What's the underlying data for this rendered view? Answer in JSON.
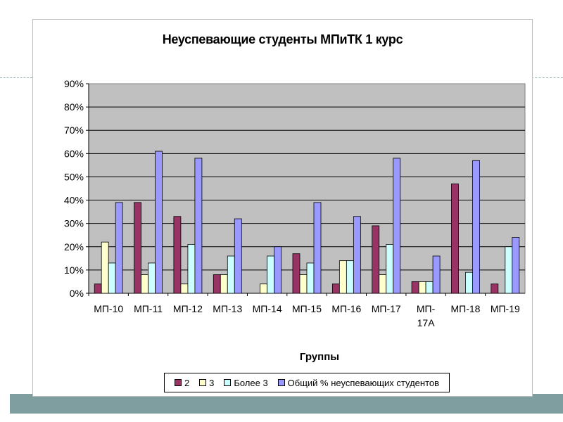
{
  "chart_data": {
    "type": "bar",
    "title": "Неуспевающие студенты МПиТК 1 курс",
    "xlabel": "Группы",
    "ylabel": "",
    "ylim": [
      0,
      90
    ],
    "yticks": [
      "0%",
      "10%",
      "20%",
      "30%",
      "40%",
      "50%",
      "60%",
      "70%",
      "80%",
      "90%"
    ],
    "grid": true,
    "legend_position": "bottom",
    "categories": [
      "МП-10",
      "МП-11",
      "МП-12",
      "МП-13",
      "МП-14",
      "МП-15",
      "МП-16",
      "МП-17",
      "МП-17А",
      "МП-18",
      "МП-19"
    ],
    "category_labels": [
      [
        "МП-10"
      ],
      [
        "МП-11"
      ],
      [
        "МП-12"
      ],
      [
        "МП-13"
      ],
      [
        "МП-14"
      ],
      [
        "МП-15"
      ],
      [
        "МП-16"
      ],
      [
        "МП-17"
      ],
      [
        "МП-",
        "17А"
      ],
      [
        "МП-18"
      ],
      [
        "МП-19"
      ]
    ],
    "series": [
      {
        "name": "2",
        "color": "#993366",
        "values": [
          4,
          39,
          33,
          8,
          0,
          17,
          4,
          29,
          5,
          47,
          4
        ]
      },
      {
        "name": "3",
        "color": "#ffffcc",
        "values": [
          22,
          8,
          4,
          8,
          4,
          8,
          14,
          8,
          5,
          0,
          0
        ]
      },
      {
        "name": "Более 3",
        "color": "#ccffff",
        "values": [
          13,
          13,
          21,
          16,
          16,
          13,
          14,
          21,
          5,
          9,
          20
        ]
      },
      {
        "name": "Общий % неуспевающих студентов",
        "color": "#9999ff",
        "values": [
          39,
          61,
          58,
          32,
          20,
          39,
          33,
          58,
          16,
          57,
          24
        ]
      }
    ],
    "plot_background": "#c0c0c0"
  }
}
